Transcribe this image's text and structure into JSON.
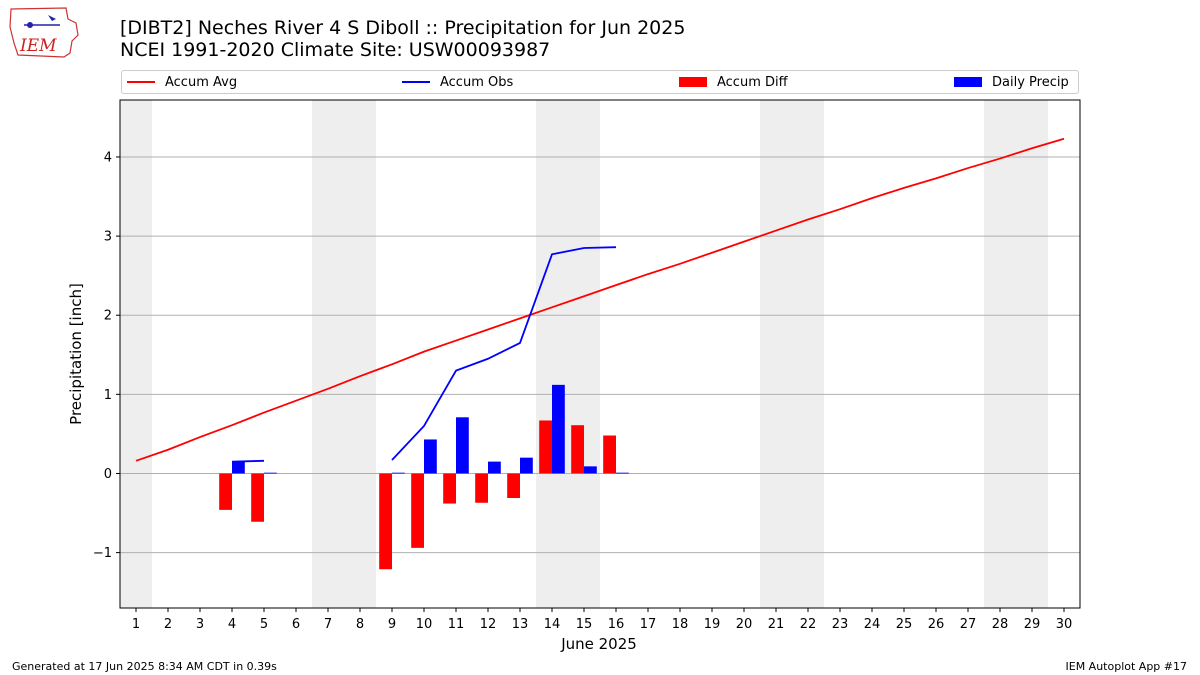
{
  "header": {
    "title_line1": "[DIBT2] Neches River 4 S Diboll :: Precipitation for Jun 2025",
    "title_line2": "NCEI 1991-2020 Climate Site: USW00093987",
    "logo_text": "IEM"
  },
  "footer": {
    "generated": "Generated at 17 Jun 2025 8:34 AM CDT in 0.39s",
    "app": "IEM Autoplot App #17"
  },
  "legend": {
    "placement": "top, above plot",
    "items": [
      {
        "label": "Accum Avg",
        "kind": "line",
        "color": "#ff0000"
      },
      {
        "label": "Accum Obs",
        "kind": "line",
        "color": "#0000ff"
      },
      {
        "label": "Accum Diff",
        "kind": "bar",
        "color": "#ff0000"
      },
      {
        "label": "Daily Precip",
        "kind": "bar",
        "color": "#0000ff"
      }
    ]
  },
  "chart_data": {
    "type": "bar",
    "xlabel": "June 2025",
    "ylabel": "Precipitation [inch]",
    "xlim": [
      0.5,
      30.5
    ],
    "ylim": [
      -1.7,
      4.72
    ],
    "x_ticks": [
      1,
      2,
      3,
      4,
      5,
      6,
      7,
      8,
      9,
      10,
      11,
      12,
      13,
      14,
      15,
      16,
      17,
      18,
      19,
      20,
      21,
      22,
      23,
      24,
      25,
      26,
      27,
      28,
      29,
      30
    ],
    "y_ticks": [
      -1,
      0,
      1,
      2,
      3,
      4
    ],
    "y_tick_labels": [
      "−1",
      "0",
      "1",
      "2",
      "3",
      "4"
    ],
    "grid": "horizontal",
    "weekend_shading": [
      [
        0.5,
        1.5
      ],
      [
        6.5,
        8.5
      ],
      [
        13.5,
        15.5
      ],
      [
        20.5,
        22.5
      ],
      [
        27.5,
        29.5
      ]
    ],
    "shade_color": "#eeeeee",
    "series": [
      {
        "name": "Accum Avg",
        "kind": "line",
        "color": "#ff0000",
        "x": [
          1,
          2,
          3,
          4,
          5,
          6,
          7,
          8,
          9,
          10,
          11,
          12,
          13,
          14,
          15,
          16,
          17,
          18,
          19,
          20,
          21,
          22,
          23,
          24,
          25,
          26,
          27,
          28,
          29,
          30
        ],
        "values": [
          0.16,
          0.3,
          0.46,
          0.61,
          0.77,
          0.92,
          1.07,
          1.23,
          1.38,
          1.54,
          1.68,
          1.82,
          1.96,
          2.1,
          2.24,
          2.38,
          2.52,
          2.65,
          2.79,
          2.93,
          3.07,
          3.21,
          3.34,
          3.48,
          3.61,
          3.73,
          3.86,
          3.98,
          4.11,
          4.23
        ]
      },
      {
        "name": "Accum Obs",
        "kind": "line",
        "color": "#0000ff",
        "segments": [
          {
            "x": [
              4,
              5
            ],
            "values": [
              0.15,
              0.16
            ]
          },
          {
            "x": [
              9,
              10,
              11,
              12,
              13,
              14,
              15,
              16
            ],
            "values": [
              0.17,
              0.6,
              1.3,
              1.45,
              1.65,
              2.77,
              2.85,
              2.86
            ]
          }
        ]
      },
      {
        "name": "Accum Diff",
        "kind": "bar",
        "color": "#ff0000",
        "offset": -0.2,
        "x": [
          4,
          5,
          9,
          10,
          11,
          12,
          13,
          14,
          15,
          16
        ],
        "values": [
          -0.46,
          -0.61,
          -1.21,
          -0.94,
          -0.38,
          -0.37,
          -0.31,
          0.67,
          0.61,
          0.48
        ]
      },
      {
        "name": "Daily Precip",
        "kind": "bar",
        "color": "#0000ff",
        "offset": 0.2,
        "x": [
          4,
          5,
          9,
          10,
          11,
          12,
          13,
          14,
          15,
          16
        ],
        "values": [
          0.15,
          0.01,
          0.01,
          0.43,
          0.71,
          0.15,
          0.2,
          1.12,
          0.09,
          0.01
        ]
      }
    ]
  }
}
